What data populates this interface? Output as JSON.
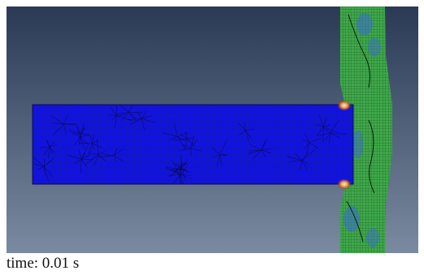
{
  "caption": {
    "text": "time: 0.01 s"
  },
  "scene": {
    "background_top_color": "#2a3a55",
    "background_bottom_color": "#7a8aa0",
    "projectile_color": "#1212e0",
    "projectile_mesh_color": "#0a0a55",
    "plate_color": "#3fa84a",
    "plate_mesh_color": "#0f3a14",
    "plate_stress_low_color": "#3b6ec8",
    "contact_high_stress_color": "#e8883a"
  }
}
